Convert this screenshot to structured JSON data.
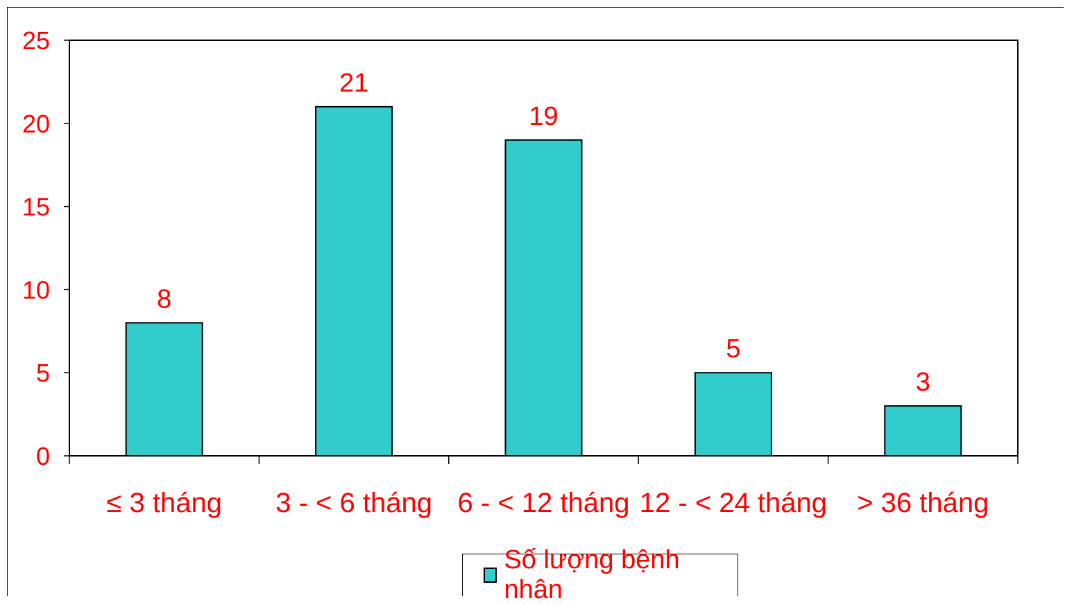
{
  "chart_data": {
    "type": "bar",
    "categories": [
      "≤ 3 tháng",
      "3 - < 6 tháng",
      "6 - < 12 tháng",
      "12 - < 24 tháng",
      "> 36 tháng"
    ],
    "series": [
      {
        "name": "Số lượng bệnh nhân",
        "values": [
          8,
          21,
          19,
          5,
          3
        ]
      }
    ],
    "ylim": [
      0,
      25
    ],
    "yticks": [
      "0",
      "5",
      "10",
      "15",
      "20",
      "25"
    ],
    "data_labels": [
      "8",
      "21",
      "19",
      "5",
      "3"
    ],
    "grid": false,
    "legend_position": "bottom",
    "colors": {
      "bar_fill": "#33cccc",
      "bar_stroke": "#000000",
      "text": "#ff0000",
      "axis": "#000000"
    }
  }
}
